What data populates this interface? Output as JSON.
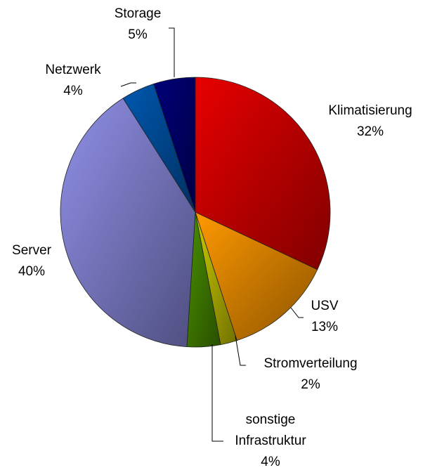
{
  "chart_data": {
    "type": "pie",
    "categories": [
      "Klimatisierung",
      "USV",
      "Stromverteilung",
      "sonstige\nInfrastruktur",
      "Server",
      "Netzwerk",
      "Storage"
    ],
    "values": [
      32,
      13,
      2,
      4,
      40,
      4,
      5
    ],
    "value_labels": [
      "32%",
      "13%",
      "2%",
      "4%",
      "40%",
      "4%",
      "5%"
    ],
    "colors": [
      "#e80000",
      "#ff9900",
      "#cccc00",
      "#4a9000",
      "#9090e8",
      "#0058b0",
      "#00007a"
    ]
  }
}
